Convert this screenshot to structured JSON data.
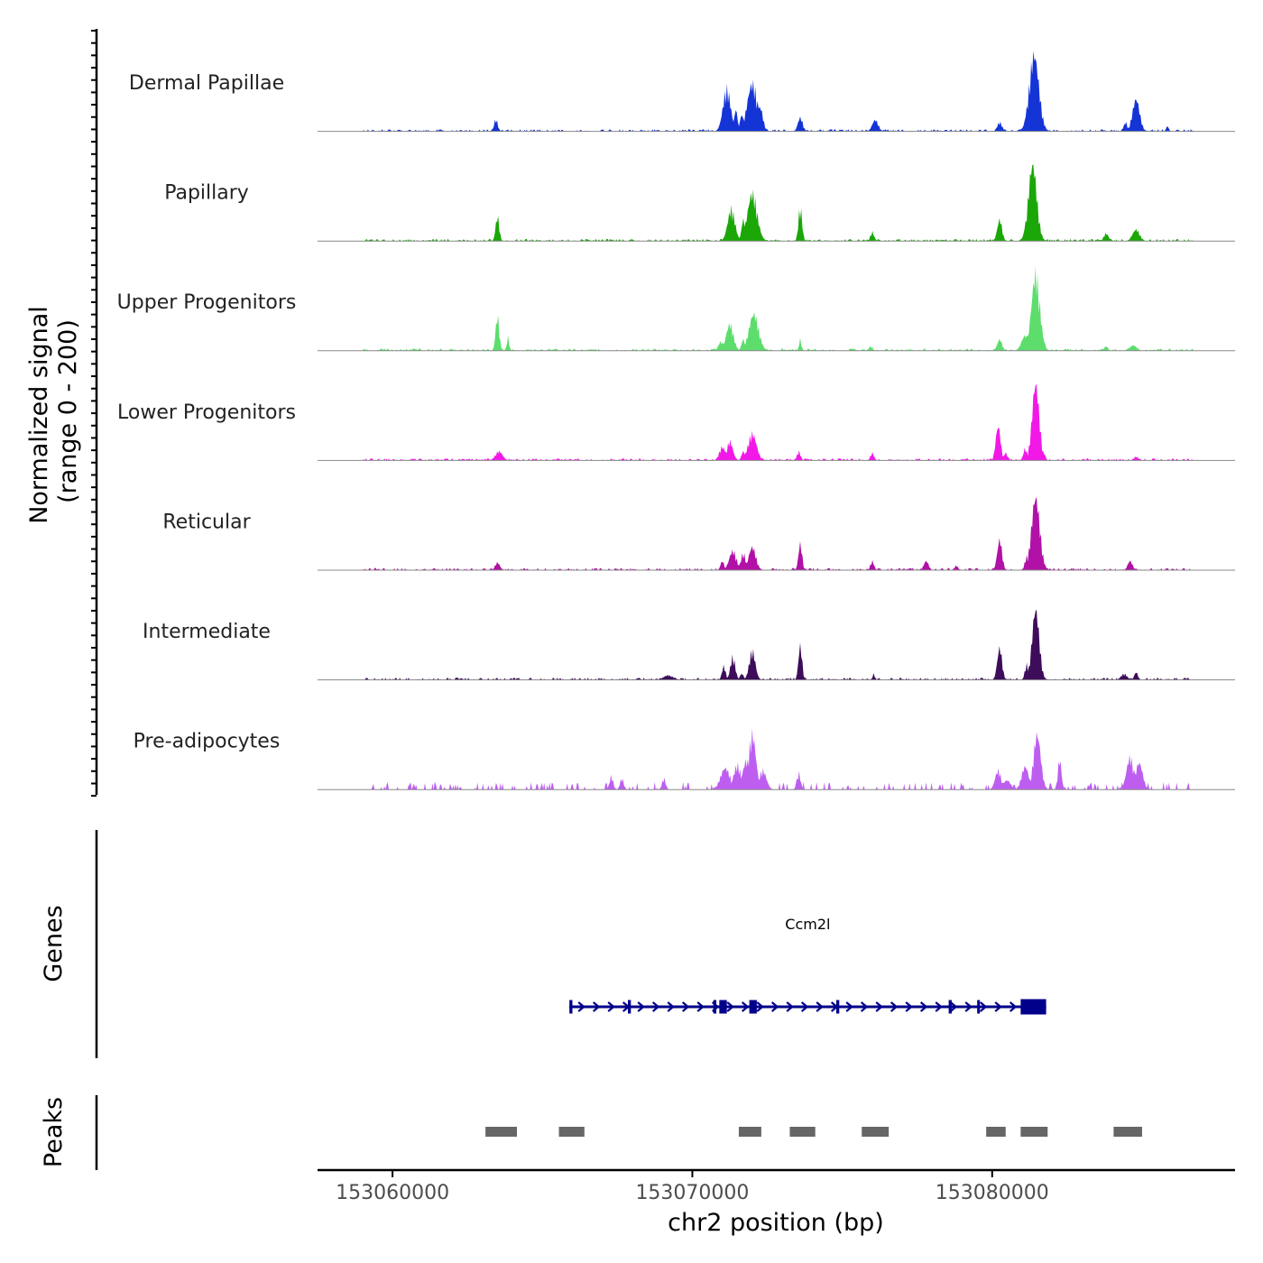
{
  "chart_data": {
    "type": "area",
    "y_axis_title_line1": "Normalized signal",
    "y_axis_title_line2": "(range 0 - 200)",
    "signal_range": [
      0,
      200
    ],
    "region": {
      "chromosome": "chr2",
      "start": 153057500,
      "end": 153088100
    },
    "x_axis": {
      "title": "chr2 position (bp)",
      "ticks": [
        153060000,
        153070000,
        153080000
      ],
      "tick_labels": [
        "153060000",
        "153070000",
        "153080000"
      ]
    },
    "baseline_color": "#888888",
    "tracks": [
      {
        "name": "Dermal Papillae",
        "color": "#1434d6",
        "peaks": [
          [
            153063450,
            150,
            18,
            0.16
          ],
          [
            153071150,
            320,
            24,
            0.55
          ],
          [
            153071450,
            150,
            14,
            0.28
          ],
          [
            153071650,
            150,
            10,
            0.22
          ],
          [
            153072000,
            420,
            26,
            0.62
          ],
          [
            153072250,
            250,
            12,
            0.32
          ],
          [
            153073600,
            200,
            14,
            0.18
          ],
          [
            153076100,
            250,
            12,
            0.15
          ],
          [
            153080250,
            200,
            14,
            0.12
          ],
          [
            153081400,
            400,
            22,
            1.0
          ],
          [
            153081150,
            150,
            12,
            0.2
          ],
          [
            153084800,
            300,
            24,
            0.42
          ],
          [
            153084450,
            150,
            12,
            0.12
          ],
          [
            153085850,
            100,
            8,
            0.07
          ]
        ]
      },
      {
        "name": "Papillary",
        "color": "#1aa707",
        "peaks": [
          [
            153063500,
            150,
            16,
            0.32
          ],
          [
            153071300,
            300,
            20,
            0.42
          ],
          [
            153071700,
            150,
            10,
            0.28
          ],
          [
            153072000,
            400,
            26,
            0.62
          ],
          [
            153073600,
            150,
            16,
            0.45
          ],
          [
            153076000,
            150,
            10,
            0.12
          ],
          [
            153080250,
            200,
            12,
            0.28
          ],
          [
            153081350,
            350,
            24,
            1.0
          ],
          [
            153081100,
            150,
            10,
            0.15
          ],
          [
            153083800,
            200,
            14,
            0.1
          ],
          [
            153084800,
            300,
            18,
            0.15
          ]
        ]
      },
      {
        "name": "Upper Progenitors",
        "color": "#5cdd6c",
        "peaks": [
          [
            153063500,
            150,
            16,
            0.45
          ],
          [
            153063850,
            100,
            10,
            0.18
          ],
          [
            153070950,
            200,
            12,
            0.12
          ],
          [
            153071250,
            300,
            20,
            0.35
          ],
          [
            153071700,
            150,
            10,
            0.15
          ],
          [
            153072050,
            400,
            24,
            0.48
          ],
          [
            153073600,
            100,
            8,
            0.15
          ],
          [
            153075950,
            150,
            10,
            0.06
          ],
          [
            153080250,
            200,
            12,
            0.15
          ],
          [
            153081100,
            300,
            16,
            0.2
          ],
          [
            153081450,
            350,
            24,
            1.0
          ],
          [
            153081750,
            100,
            8,
            0.1
          ],
          [
            153083800,
            150,
            10,
            0.06
          ],
          [
            153084700,
            300,
            18,
            0.07
          ]
        ]
      },
      {
        "name": "Lower Progenitors",
        "color": "#f219e8",
        "peaks": [
          [
            153063550,
            300,
            18,
            0.12
          ],
          [
            153071000,
            250,
            14,
            0.18
          ],
          [
            153071250,
            250,
            16,
            0.25
          ],
          [
            153071700,
            150,
            10,
            0.12
          ],
          [
            153072000,
            350,
            22,
            0.35
          ],
          [
            153073550,
            150,
            10,
            0.12
          ],
          [
            153076000,
            150,
            10,
            0.1
          ],
          [
            153080200,
            200,
            12,
            0.45
          ],
          [
            153080450,
            150,
            8,
            0.1
          ],
          [
            153081100,
            150,
            10,
            0.16
          ],
          [
            153081450,
            300,
            22,
            1.0
          ],
          [
            153081750,
            100,
            8,
            0.08
          ],
          [
            153084800,
            200,
            14,
            0.05
          ]
        ]
      },
      {
        "name": "Reticular",
        "color": "#b111a6",
        "peaks": [
          [
            153063500,
            200,
            12,
            0.1
          ],
          [
            153071000,
            150,
            10,
            0.12
          ],
          [
            153071350,
            300,
            18,
            0.25
          ],
          [
            153071700,
            200,
            12,
            0.22
          ],
          [
            153072000,
            300,
            18,
            0.3
          ],
          [
            153073600,
            150,
            14,
            0.35
          ],
          [
            153076000,
            150,
            10,
            0.12
          ],
          [
            153077800,
            200,
            12,
            0.12
          ],
          [
            153080250,
            200,
            12,
            0.4
          ],
          [
            153081150,
            150,
            10,
            0.18
          ],
          [
            153081450,
            350,
            22,
            0.95
          ],
          [
            153084600,
            200,
            14,
            0.12
          ],
          [
            153078800,
            150,
            10,
            0.06
          ]
        ]
      },
      {
        "name": "Intermediate",
        "color": "#3d0c5a",
        "peaks": [
          [
            153071050,
            150,
            10,
            0.18
          ],
          [
            153071350,
            200,
            12,
            0.3
          ],
          [
            153071650,
            150,
            10,
            0.08
          ],
          [
            153072000,
            250,
            14,
            0.38
          ],
          [
            153073600,
            150,
            14,
            0.45
          ],
          [
            153076050,
            100,
            8,
            0.08
          ],
          [
            153080250,
            200,
            12,
            0.42
          ],
          [
            153081150,
            150,
            10,
            0.2
          ],
          [
            153081450,
            300,
            22,
            0.92
          ],
          [
            153069200,
            400,
            20,
            0.06
          ],
          [
            153084400,
            250,
            14,
            0.08
          ],
          [
            153084800,
            150,
            10,
            0.1
          ]
        ]
      },
      {
        "name": "Pre-adipocytes",
        "color": "#be5ef0",
        "peaks": [
          [
            153071100,
            400,
            22,
            0.28
          ],
          [
            153071500,
            300,
            16,
            0.32
          ],
          [
            153071800,
            300,
            16,
            0.38
          ],
          [
            153072000,
            300,
            22,
            0.72
          ],
          [
            153072350,
            300,
            14,
            0.25
          ],
          [
            153073550,
            150,
            10,
            0.22
          ],
          [
            153080200,
            250,
            14,
            0.25
          ],
          [
            153080500,
            300,
            12,
            0.12
          ],
          [
            153081100,
            300,
            14,
            0.3
          ],
          [
            153081500,
            300,
            20,
            0.72
          ],
          [
            153082250,
            150,
            10,
            0.4
          ],
          [
            153084600,
            300,
            16,
            0.42
          ],
          [
            153084900,
            300,
            14,
            0.35
          ],
          [
            153067300,
            150,
            10,
            0.18
          ],
          [
            153067650,
            150,
            10,
            0.15
          ],
          [
            153069050,
            150,
            10,
            0.15
          ]
        ]
      }
    ],
    "genes_label": "Genes",
    "genes": [
      {
        "name": "Ccm2l",
        "start": 153065900,
        "end": 153081800,
        "strand": "+",
        "exons": [
          [
            153065900,
            153066000
          ],
          [
            153067850,
            153067950
          ],
          [
            153070700,
            153070800
          ],
          [
            153070900,
            153071150
          ],
          [
            153071900,
            153072150
          ],
          [
            153074800,
            153074900
          ],
          [
            153078550,
            153078650
          ],
          [
            153079500,
            153079580
          ],
          [
            153080950,
            153081800
          ]
        ]
      }
    ],
    "peaks_label": "Peaks",
    "peak_regions": [
      [
        153063100,
        153064150
      ],
      [
        153065550,
        153066400
      ],
      [
        153071550,
        153072300
      ],
      [
        153073250,
        153074100
      ],
      [
        153075650,
        153076550
      ],
      [
        153079800,
        153080450
      ],
      [
        153080950,
        153081850
      ],
      [
        153084050,
        153085000
      ]
    ]
  }
}
